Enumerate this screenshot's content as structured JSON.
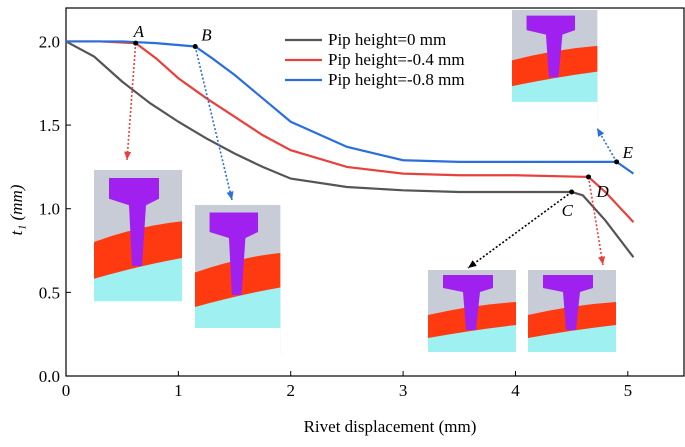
{
  "chart_data": {
    "type": "line",
    "x_label": "Rivet displacement (mm)",
    "y_label": "t₁ (mm)",
    "xlim": [
      0,
      5.5
    ],
    "ylim": [
      0,
      2.2
    ],
    "xticks": [
      0,
      1,
      2,
      3,
      4,
      5
    ],
    "yticks": [
      {
        "value": 0,
        "label": "0.0"
      },
      {
        "value": 0.5,
        "label": "0.5"
      },
      {
        "value": 1,
        "label": "1.0"
      },
      {
        "value": 1.5,
        "label": "1.5"
      },
      {
        "value": 2,
        "label": "2.0"
      }
    ],
    "legend": "top-center",
    "series": [
      {
        "name": "Pip height=0 mm",
        "color": "#555555",
        "x": [
          0,
          0.25,
          0.5,
          0.75,
          1,
          1.25,
          1.5,
          1.75,
          2,
          2.5,
          3,
          3.5,
          4,
          4.5,
          4.6,
          4.8,
          5.05
        ],
        "values": [
          2.0,
          1.91,
          1.76,
          1.63,
          1.52,
          1.42,
          1.33,
          1.25,
          1.18,
          1.13,
          1.11,
          1.1,
          1.1,
          1.1,
          1.08,
          0.93,
          0.71
        ]
      },
      {
        "name": "Pip height=-0.4 mm",
        "color": "#e8413c",
        "x": [
          0,
          0.3,
          0.62,
          0.8,
          1,
          1.25,
          1.5,
          1.75,
          2,
          2.5,
          3,
          3.5,
          4,
          4.65,
          4.8,
          5.05
        ],
        "values": [
          2.0,
          2.0,
          1.99,
          1.9,
          1.78,
          1.66,
          1.55,
          1.44,
          1.35,
          1.25,
          1.21,
          1.2,
          1.2,
          1.19,
          1.1,
          0.92
        ]
      },
      {
        "name": "Pip height=-0.8 mm",
        "color": "#2a6fdc",
        "x": [
          0,
          0.5,
          0.8,
          1.15,
          1.3,
          1.5,
          1.75,
          2,
          2.5,
          3,
          3.5,
          4,
          4.5,
          4.9,
          5.05
        ],
        "values": [
          2.0,
          2.0,
          1.99,
          1.97,
          1.9,
          1.8,
          1.66,
          1.52,
          1.37,
          1.29,
          1.28,
          1.28,
          1.28,
          1.28,
          1.21
        ]
      }
    ],
    "annotations": [
      {
        "label": "A",
        "x": 0.62,
        "y": 1.99
      },
      {
        "label": "B",
        "x": 1.15,
        "y": 1.97
      },
      {
        "label": "C",
        "x": 4.5,
        "y": 1.1
      },
      {
        "label": "D",
        "x": 4.65,
        "y": 1.19
      },
      {
        "label": "E",
        "x": 4.9,
        "y": 1.28
      }
    ]
  }
}
